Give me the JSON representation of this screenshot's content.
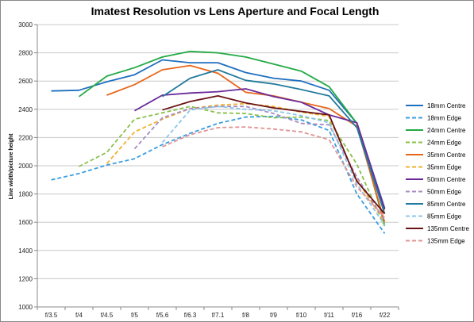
{
  "chart_data": {
    "type": "line",
    "title": "Imatest Resolution vs Lens Aperture and Focal Length",
    "xlabel": "",
    "ylabel": "Line width/picture height",
    "categories": [
      "f/3.5",
      "f/4",
      "f/4.5",
      "f/5",
      "f/5.6",
      "f/6.3",
      "f/7.1",
      "f/8",
      "f/9",
      "f/10",
      "f/11",
      "f/16",
      "f/22"
    ],
    "ylim": [
      1000,
      3000
    ],
    "yticks": [
      1000,
      1200,
      1400,
      1600,
      1800,
      2000,
      2200,
      2400,
      2600,
      2800,
      3000
    ],
    "grid": "horizontal",
    "legend_position": "right",
    "series": [
      {
        "name": "18mm Centre",
        "color": "#1f6fbf",
        "dash": false,
        "values": [
          2530,
          2535,
          2595,
          2645,
          2750,
          2730,
          2730,
          2660,
          2620,
          2600,
          2535,
          2300,
          1700
        ]
      },
      {
        "name": "18mm Edge",
        "color": "#3a9ee0",
        "dash": true,
        "values": [
          1900,
          1945,
          2005,
          2050,
          2150,
          2230,
          2300,
          2345,
          2350,
          2325,
          2250,
          1800,
          1520
        ]
      },
      {
        "name": "24mm Centre",
        "color": "#22aa44",
        "dash": false,
        "values": [
          null,
          2490,
          2635,
          2695,
          2770,
          2810,
          2800,
          2770,
          2720,
          2670,
          2560,
          2300,
          1580
        ]
      },
      {
        "name": "24mm Edge",
        "color": "#88c04a",
        "dash": true,
        "values": [
          null,
          1995,
          2095,
          2330,
          2375,
          2420,
          2375,
          2370,
          2340,
          2345,
          2320,
          2010,
          1570
        ]
      },
      {
        "name": "35mm Centre",
        "color": "#e8661a",
        "dash": false,
        "values": [
          null,
          null,
          2500,
          2575,
          2680,
          2710,
          2655,
          2520,
          2495,
          2450,
          2405,
          2280,
          1600
        ]
      },
      {
        "name": "35mm Edge",
        "color": "#f0b030",
        "dash": true,
        "values": [
          null,
          null,
          2015,
          2240,
          2330,
          2405,
          2430,
          2440,
          2420,
          2380,
          2350,
          1900,
          1600
        ]
      },
      {
        "name": "50mm Centre",
        "color": "#6a2a9a",
        "dash": false,
        "values": [
          null,
          null,
          null,
          2390,
          2500,
          2515,
          2525,
          2545,
          2490,
          2450,
          2360,
          2305,
          1690
        ]
      },
      {
        "name": "50mm Edge",
        "color": "#a88cc0",
        "dash": true,
        "values": [
          null,
          null,
          null,
          2120,
          2340,
          2405,
          2420,
          2420,
          2370,
          2300,
          2290,
          1920,
          1610
        ]
      },
      {
        "name": "85mm Centre",
        "color": "#217a9c",
        "dash": false,
        "values": [
          null,
          null,
          null,
          null,
          2490,
          2620,
          2680,
          2605,
          2580,
          2540,
          2495,
          2270,
          1660
        ]
      },
      {
        "name": "85mm Edge",
        "color": "#8cc7e8",
        "dash": true,
        "values": [
          null,
          null,
          null,
          null,
          2165,
          2395,
          2420,
          2400,
          2390,
          2355,
          2305,
          1870,
          1580
        ]
      },
      {
        "name": "135mm Centre",
        "color": "#6b1414",
        "dash": false,
        "values": [
          null,
          null,
          null,
          null,
          2395,
          2455,
          2495,
          2445,
          2410,
          2385,
          2360,
          1890,
          1660
        ]
      },
      {
        "name": "135mm Edge",
        "color": "#e09494",
        "dash": true,
        "values": [
          null,
          null,
          null,
          null,
          2135,
          2220,
          2270,
          2275,
          2260,
          2240,
          2185,
          1850,
          1635
        ]
      }
    ]
  }
}
